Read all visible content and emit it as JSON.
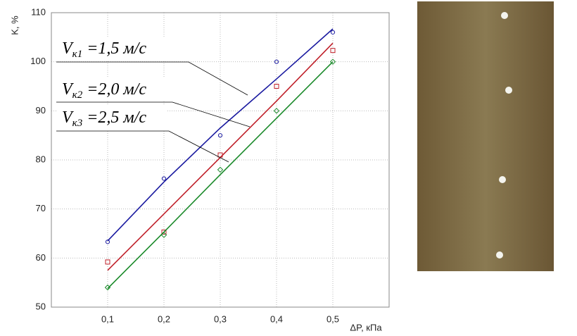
{
  "chart_data": {
    "type": "scatter",
    "y_label": "K, %",
    "x_label": "ΔP, кПа",
    "x": [
      0.1,
      0.2,
      0.3,
      0.4,
      0.5
    ],
    "xlim": [
      0,
      0.6
    ],
    "xticks": [
      {
        "value": 0.1,
        "label": "0,1"
      },
      {
        "value": 0.2,
        "label": "0,2"
      },
      {
        "value": 0.3,
        "label": "0,3"
      },
      {
        "value": 0.4,
        "label": "0,4"
      },
      {
        "value": 0.5,
        "label": "0,5"
      }
    ],
    "ylim": [
      50,
      110
    ],
    "yticks": [
      50,
      60,
      70,
      80,
      90,
      100,
      110
    ],
    "grid": true,
    "series": [
      {
        "name": [
          "V",
          "к1",
          "=1,5 м/с"
        ],
        "color": "#1a1aa0",
        "marker": "circle",
        "values": [
          63.3,
          76.2,
          85,
          100,
          106
        ],
        "fit_values": [
          63.5,
          75.5,
          86.5,
          96.5,
          106.7
        ]
      },
      {
        "name": [
          "V",
          "к2",
          "=2,0 м/с"
        ],
        "color": "#c0202a",
        "marker": "square",
        "values": [
          59.2,
          65.3,
          81,
          95,
          102.3
        ],
        "fit_values": [
          57.5,
          69,
          80.5,
          92,
          103.8
        ]
      },
      {
        "name": [
          "V",
          "к3",
          "=2,5 м/с"
        ],
        "color": "#1a8a2a",
        "marker": "diamond",
        "values": [
          54,
          64.7,
          78,
          90,
          100
        ],
        "fit_values": [
          53.8,
          65.3,
          77,
          88.5,
          100
        ]
      }
    ]
  }
}
